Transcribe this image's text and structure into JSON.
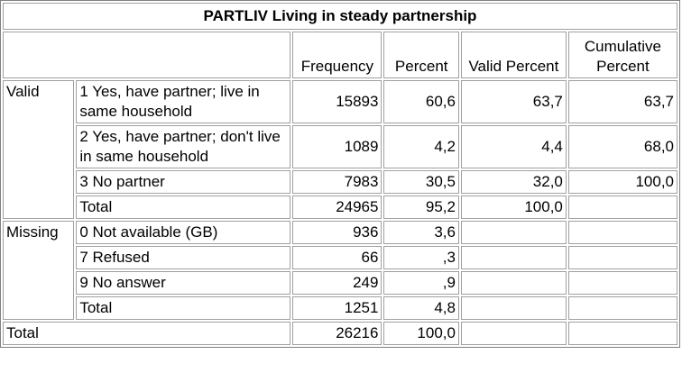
{
  "title": "PARTLIV Living in steady partnership",
  "headers": {
    "frequency": "Frequency",
    "percent": "Percent",
    "valid_percent": "Valid Percent",
    "cumulative_percent": "Cumulative Percent"
  },
  "groups": {
    "valid": "Valid",
    "missing": "Missing",
    "total": "Total"
  },
  "rows": [
    {
      "label": "1 Yes, have partner; live in same household",
      "freq": "15893",
      "pct": "60,6",
      "vpct": "63,7",
      "cpct": "63,7"
    },
    {
      "label": "2 Yes, have partner; don't live in same household",
      "freq": "1089",
      "pct": "4,2",
      "vpct": "4,4",
      "cpct": "68,0"
    },
    {
      "label": "3 No partner",
      "freq": "7983",
      "pct": "30,5",
      "vpct": "32,0",
      "cpct": "100,0"
    },
    {
      "label": "Total",
      "freq": "24965",
      "pct": "95,2",
      "vpct": "100,0",
      "cpct": ""
    },
    {
      "label": "0 Not available (GB)",
      "freq": "936",
      "pct": "3,6",
      "vpct": "",
      "cpct": ""
    },
    {
      "label": "7 Refused",
      "freq": "66",
      "pct": ",3",
      "vpct": "",
      "cpct": ""
    },
    {
      "label": "9 No answer",
      "freq": "249",
      "pct": ",9",
      "vpct": "",
      "cpct": ""
    },
    {
      "label": "Total",
      "freq": "1251",
      "pct": "4,8",
      "vpct": "",
      "cpct": ""
    }
  ],
  "grand_total": {
    "freq": "26216",
    "pct": "100,0"
  }
}
